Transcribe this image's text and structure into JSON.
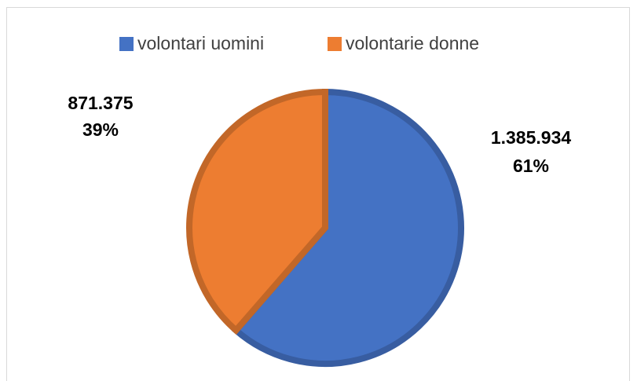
{
  "chart_data": {
    "type": "pie",
    "categories": [
      "volontari uomini",
      "volontarie donne"
    ],
    "values": [
      1385934,
      871375
    ],
    "value_labels": [
      "1.385.934",
      "871.375"
    ],
    "percent_labels": [
      "61%",
      "39%"
    ],
    "colors": [
      "#4472c4",
      "#ed7d31"
    ],
    "legend": "top"
  }
}
